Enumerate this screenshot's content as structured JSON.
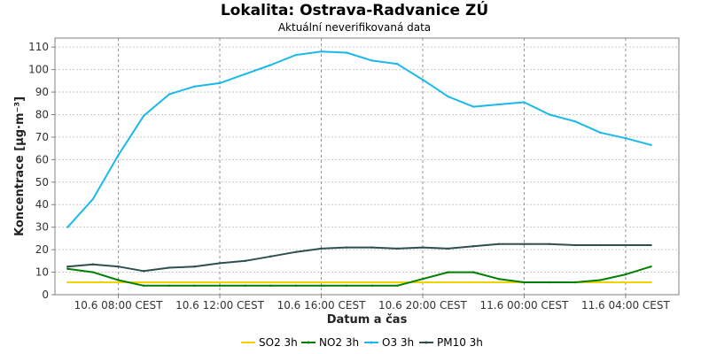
{
  "chart_data": {
    "type": "line",
    "title": "Lokalita: Ostrava-Radvanice ZÚ",
    "subtitle": "Aktuální neverifikovaná data",
    "xlabel": "Datum a čas",
    "ylabel": "Koncentrace [µg·m⁻³]",
    "ylim": [
      0,
      114
    ],
    "yticks": [
      0,
      10,
      20,
      30,
      40,
      50,
      60,
      70,
      80,
      90,
      100,
      110
    ],
    "x_hours": [
      6,
      7,
      8,
      9,
      10,
      11,
      12,
      13,
      14,
      15,
      16,
      17,
      18,
      19,
      20,
      21,
      22,
      23,
      24,
      25,
      26,
      27,
      28,
      29
    ],
    "xlim_hours": [
      5.5,
      30.1
    ],
    "xticks": [
      {
        "hour": 8,
        "label": "10.6 08:00 CEST"
      },
      {
        "hour": 12,
        "label": "10.6 12:00 CEST"
      },
      {
        "hour": 16,
        "label": "10.6 16:00 CEST"
      },
      {
        "hour": 20,
        "label": "10.6 20:00 CEST"
      },
      {
        "hour": 24,
        "label": "11.6 00:00 CEST"
      },
      {
        "hour": 28,
        "label": "11.6 04:00 CEST"
      }
    ],
    "grid": true,
    "legend_position": "bottom",
    "series": [
      {
        "name": "SO2 3h",
        "color": "#f2d200",
        "values": [
          5.5,
          5.5,
          5.5,
          5.5,
          5.5,
          5.5,
          5.5,
          5.5,
          5.5,
          5.5,
          5.5,
          5.5,
          5.5,
          5.5,
          5.5,
          5.5,
          5.5,
          5.5,
          5.5,
          5.5,
          5.5,
          5.5,
          5.5,
          5.5
        ]
      },
      {
        "name": "NO2 3h",
        "color": "#008000",
        "values": [
          11.5,
          10.0,
          6.5,
          4.0,
          4.0,
          4.0,
          4.0,
          4.0,
          4.0,
          4.0,
          4.0,
          4.0,
          4.0,
          4.0,
          7.0,
          10.0,
          10.0,
          7.0,
          5.5,
          5.5,
          5.5,
          6.5,
          9.0,
          12.5
        ]
      },
      {
        "name": "O3 3h",
        "color": "#1ab9ea",
        "values": [
          30.0,
          42.5,
          62.0,
          79.5,
          89.0,
          92.5,
          94.0,
          98.0,
          102.0,
          106.5,
          108.0,
          107.5,
          104.0,
          102.5,
          95.5,
          88.0,
          83.5,
          84.5,
          85.5,
          80.0,
          77.0,
          72.0,
          69.5,
          66.5
        ]
      },
      {
        "name": "PM10 3h",
        "color": "#2f4f4f",
        "values": [
          12.5,
          13.5,
          12.5,
          10.5,
          12.0,
          12.5,
          14.0,
          15.0,
          17.0,
          19.0,
          20.5,
          21.0,
          21.0,
          20.5,
          21.0,
          20.5,
          21.5,
          22.5,
          22.5,
          22.5,
          22.0,
          22.0,
          22.0,
          22.0
        ]
      }
    ]
  }
}
